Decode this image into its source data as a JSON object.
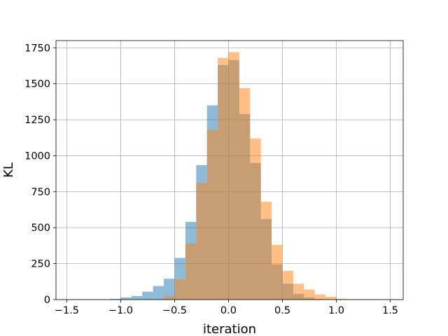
{
  "chart_data": {
    "type": "bar",
    "subtype": "histogram",
    "title": "",
    "xlabel": "iteration",
    "ylabel": "KL",
    "xlim": [
      -1.6,
      1.62
    ],
    "ylim": [
      0,
      1800
    ],
    "xticks": [
      -1.5,
      -1.0,
      -0.5,
      0.0,
      0.5,
      1.0,
      1.5
    ],
    "xtick_labels": [
      "−1.5",
      "−1.0",
      "−0.5",
      "0.0",
      "0.5",
      "1.0",
      "1.5"
    ],
    "yticks": [
      0,
      250,
      500,
      750,
      1000,
      1250,
      1500,
      1750
    ],
    "ytick_labels": [
      "0",
      "250",
      "500",
      "750",
      "1000",
      "1250",
      "1500",
      "1750"
    ],
    "grid": true,
    "legend": "none",
    "series": [
      {
        "color": "#1f77b4",
        "opacity": 0.5,
        "bin_edges": [
          -1.1,
          -1.0,
          -0.9,
          -0.8,
          -0.7,
          -0.6,
          -0.5,
          -0.4,
          -0.3,
          -0.2,
          -0.1,
          0.0,
          0.1,
          0.2,
          0.3,
          0.4,
          0.5,
          0.6,
          0.7,
          0.8,
          0.9,
          1.0
        ],
        "counts": [
          5,
          15,
          25,
          55,
          95,
          145,
          290,
          540,
          935,
          1350,
          1630,
          1665,
          1290,
          950,
          560,
          245,
          110,
          40,
          15,
          5,
          2
        ]
      },
      {
        "color": "#ff7f0e",
        "opacity": 0.5,
        "bin_edges": [
          -0.6,
          -0.5,
          -0.4,
          -0.3,
          -0.2,
          -0.1,
          0.0,
          0.1,
          0.2,
          0.3,
          0.4,
          0.5,
          0.6,
          0.7,
          0.8,
          0.9,
          1.0,
          1.1
        ],
        "counts": [
          25,
          140,
          390,
          810,
          1180,
          1680,
          1720,
          1470,
          1120,
          680,
          380,
          200,
          110,
          70,
          35,
          20,
          5
        ]
      }
    ]
  }
}
